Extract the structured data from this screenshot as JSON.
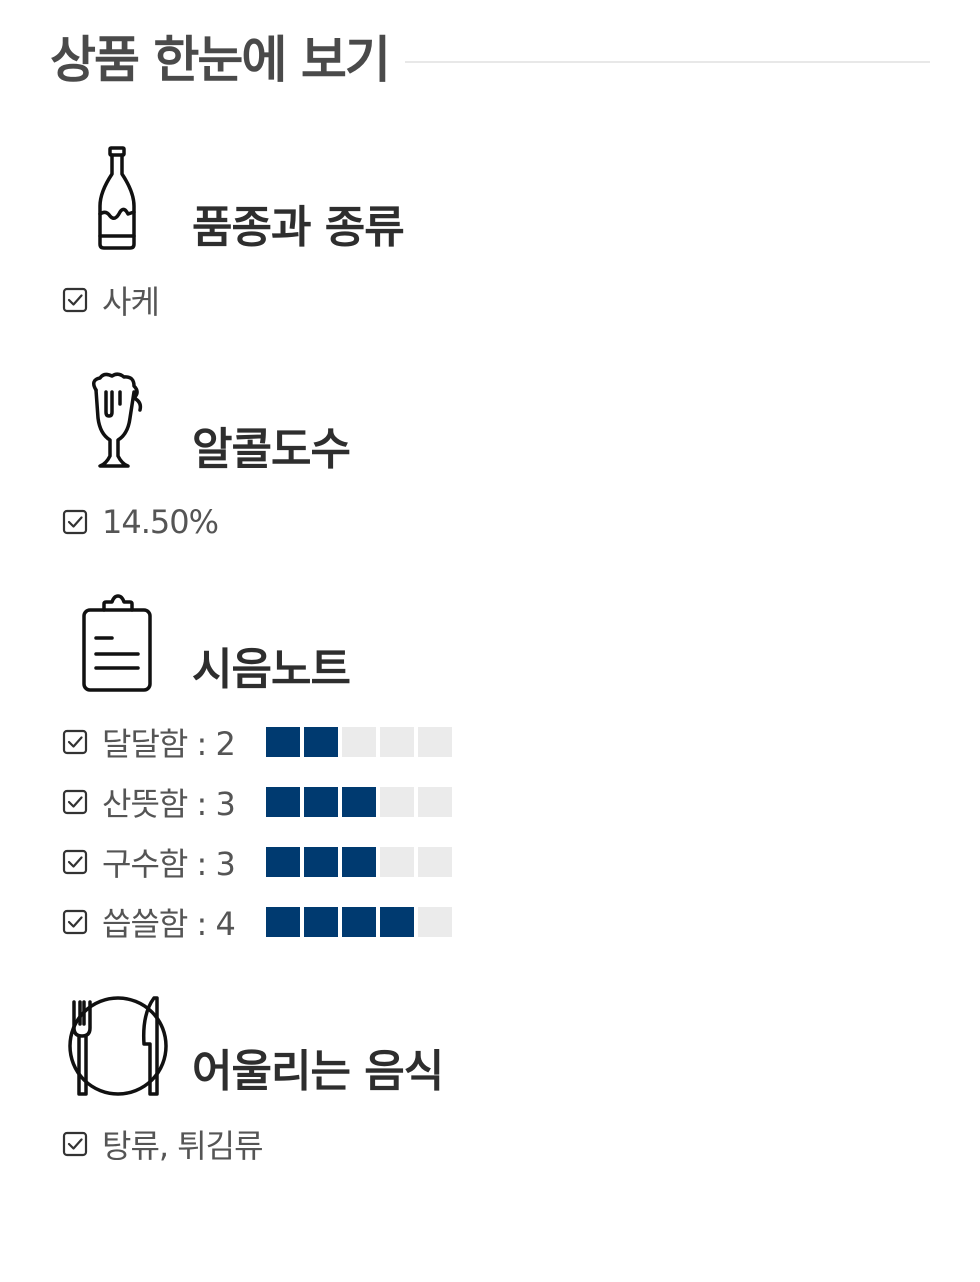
{
  "header": {
    "title": "상품 한눈에 보기"
  },
  "sections": {
    "variety": {
      "title": "품종과 종류",
      "icon": "bottle-icon",
      "value": "사케"
    },
    "alcohol": {
      "title": "알콜도수",
      "icon": "beer-glass-icon",
      "value": "14.50%"
    },
    "tasting": {
      "title": "시음노트",
      "icon": "clipboard-icon",
      "scale_max": 5,
      "notes": [
        {
          "label": "달달함 : 2",
          "score": 2
        },
        {
          "label": "산뜻함 : 3",
          "score": 3
        },
        {
          "label": "구수함 : 3",
          "score": 3
        },
        {
          "label": "씁쓸함 : 4",
          "score": 4
        }
      ]
    },
    "pairing": {
      "title": "어울리는 음식",
      "icon": "plate-fork-knife-icon",
      "value": "탕류, 튀김류"
    }
  },
  "colors": {
    "rating_filled": "#003a70",
    "rating_empty": "#ebebeb",
    "title_text": "#4a4a4a"
  }
}
